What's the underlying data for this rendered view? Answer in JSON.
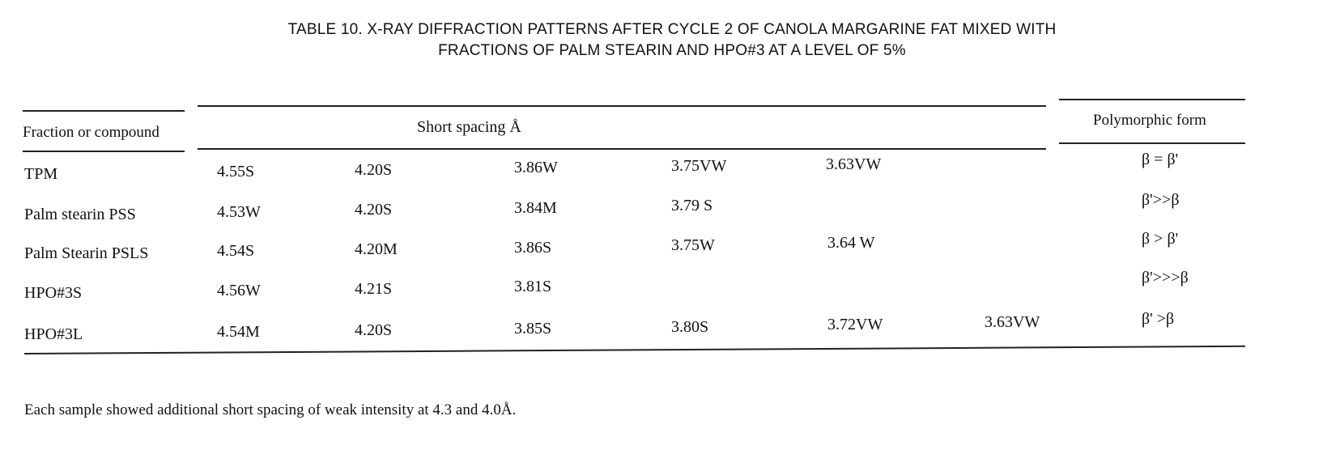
{
  "title": {
    "line1": "TABLE 10.  X-RAY DIFFRACTION PATTERNS AFTER CYCLE 2 OF CANOLA MARGARINE FAT MIXED WITH",
    "line2": "FRACTIONS OF PALM STEARIN AND HPO#3 AT A LEVEL OF 5%"
  },
  "table": {
    "headers": {
      "compound": "Fraction or compound",
      "spacing": "Short spacing Å",
      "form": "Polymorphic form"
    },
    "rows": [
      {
        "name": "TPM",
        "values": [
          "4.55S",
          "4.20S",
          "3.86W",
          "3.75VW",
          "3.63VW",
          ""
        ],
        "form": "β = β'"
      },
      {
        "name": "Palm stearin PSS",
        "values": [
          "4.53W",
          "4.20S",
          "3.84M",
          "3.79 S",
          "",
          ""
        ],
        "form": "β'>>β"
      },
      {
        "name": "Palm Stearin PSLS",
        "values": [
          "4.54S",
          "4.20M",
          "3.86S",
          "3.75W",
          "3.64 W",
          ""
        ],
        "form": "β > β'"
      },
      {
        "name": "HPO#3S",
        "values": [
          "4.56W",
          "4.21S",
          "3.81S",
          "",
          "",
          ""
        ],
        "form": "β'>>>β"
      },
      {
        "name": "HPO#3L",
        "values": [
          "4.54M",
          "4.20S",
          "3.85S",
          "3.80S",
          "3.72VW",
          "3.63VW"
        ],
        "form": "β' >β"
      }
    ]
  },
  "footnote": "Each sample showed additional short spacing of weak intensity at 4.3  and 4.0Å."
}
